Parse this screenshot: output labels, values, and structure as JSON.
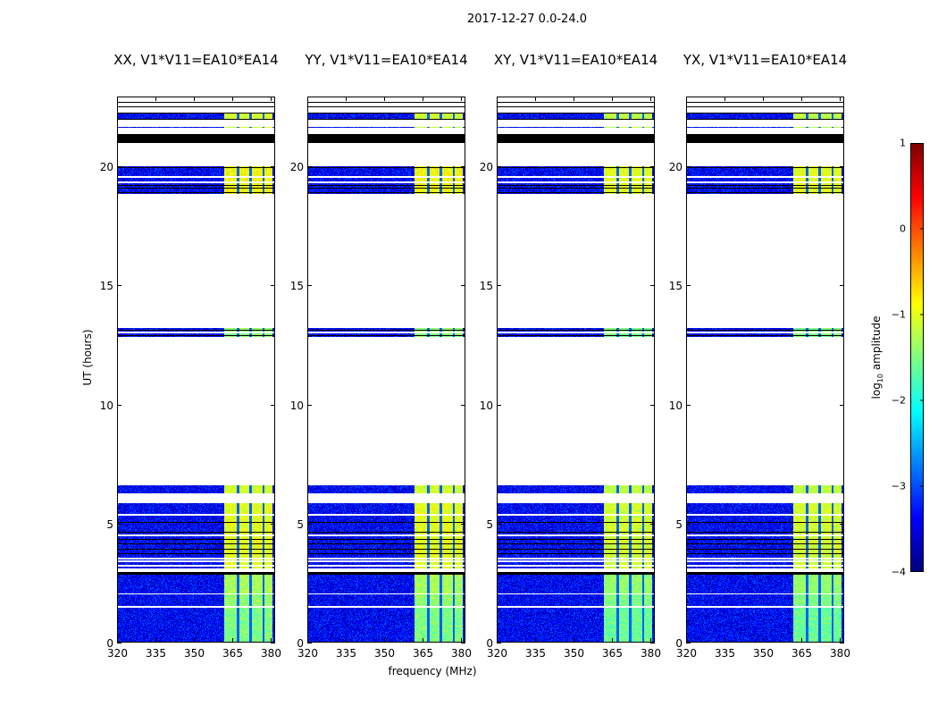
{
  "suptitle": "2017-12-27 0.0-24.0",
  "chart_data": {
    "type": "heatmap",
    "xlabel": "frequency (MHz)",
    "ylabel": "UT (hours)",
    "xlim": [
      320,
      381.7
    ],
    "ylim": [
      0,
      22.93
    ],
    "xticks": [
      320,
      335,
      350,
      365,
      380
    ],
    "yticks": [
      0,
      5,
      10,
      15,
      20
    ],
    "panels": [
      {
        "title": "XX, V1*V11=EA10*EA14"
      },
      {
        "title": "YY, V1*V11=EA10*EA14"
      },
      {
        "title": "XY, V1*V11=EA10*EA14"
      },
      {
        "title": "YX, V1*V11=EA10*EA14"
      }
    ],
    "colorbar": {
      "label": "log",
      "label_sub": "10",
      "label_suffix": " amplitude",
      "colormap": "jet",
      "range": [
        -4,
        1
      ],
      "ticks": [
        "1",
        "0",
        "−1",
        "−2",
        "−3",
        "−4"
      ],
      "tick_values": [
        1,
        0,
        -1,
        -2,
        -3,
        -4
      ]
    },
    "background_level": -3.4,
    "rfi_band": {
      "freq_range": [
        361.5,
        380.5
      ],
      "level": -1.5,
      "gaps_mhz": [
        367,
        372,
        377
      ]
    },
    "time_segments": [
      {
        "t0": 0.02,
        "t1": 1.47,
        "kind": "data",
        "boost": 0.0
      },
      {
        "t0": 1.52,
        "t1": 2.02,
        "kind": "data",
        "boost": 0.1
      },
      {
        "t0": 2.08,
        "t1": 2.85,
        "kind": "data",
        "boost": 0.2
      },
      {
        "t0": 2.85,
        "t1": 2.98,
        "kind": "flagged"
      },
      {
        "t0": 3.1,
        "t1": 3.68,
        "kind": "data",
        "boost": 0.5
      },
      {
        "t0": 3.68,
        "t1": 5.85,
        "kind": "data",
        "boost": 0.5
      },
      {
        "t0": 6.25,
        "t1": 6.6,
        "kind": "data",
        "boost": 0.4
      },
      {
        "t0": 12.85,
        "t1": 13.2,
        "kind": "data",
        "boost": 0.1
      },
      {
        "t0": 18.85,
        "t1": 20.0,
        "kind": "data",
        "boost": 0.6
      },
      {
        "t0": 20.98,
        "t1": 21.35,
        "kind": "flagged"
      },
      {
        "t0": 21.6,
        "t1": 21.66,
        "kind": "data",
        "boost": 0.4
      },
      {
        "t0": 22.0,
        "t1": 22.25,
        "kind": "data",
        "boost": 0.4
      },
      {
        "t0": 22.48,
        "t1": 22.52,
        "kind": "flagged"
      },
      {
        "t0": 22.66,
        "t1": 22.72,
        "kind": "flagged"
      }
    ],
    "white_lines": [
      3.25,
      3.45,
      3.58,
      4.55,
      5.4,
      13.05,
      19.35,
      19.6
    ],
    "black_lines": [
      3.75,
      3.95,
      4.15,
      4.35,
      4.65,
      5.05,
      12.9,
      13.15,
      18.9,
      19.1,
      19.2,
      19.95,
      22.0,
      22.25
    ]
  }
}
